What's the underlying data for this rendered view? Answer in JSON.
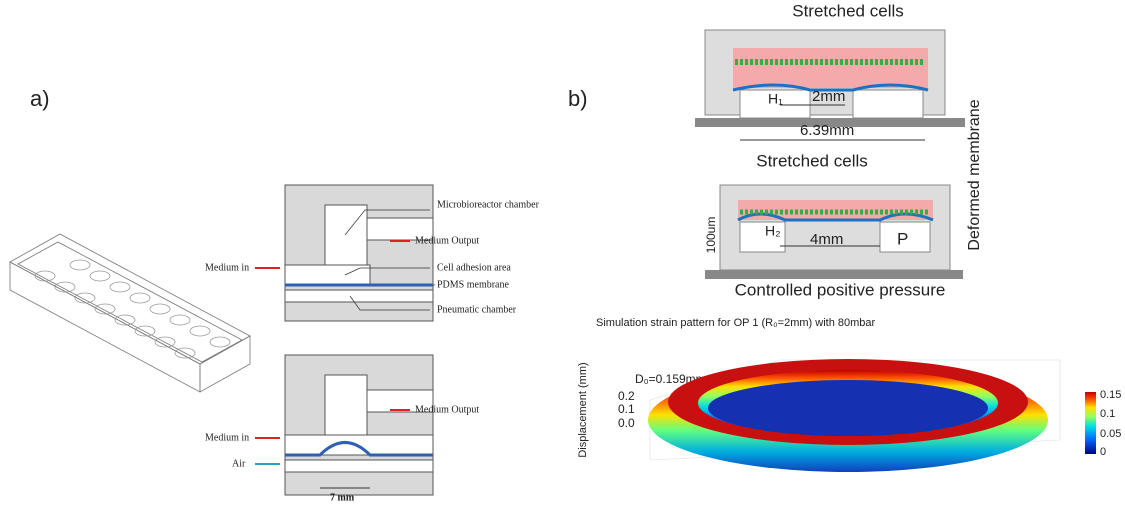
{
  "panel_a": {
    "label": "a)",
    "top_diagram": {
      "labels": [
        "Microbioreactor chamber",
        "Medium Output",
        "Medium in",
        "Cell adhesion area",
        "PDMS membrane",
        "Pneumatic chamber"
      ]
    },
    "bottom_diagram": {
      "labels": [
        "Medium Output",
        "Medium in",
        "Air",
        "7 mm"
      ]
    }
  },
  "panel_b": {
    "label": "b)",
    "top_diagram": {
      "labels": [
        "Stretched cells",
        "H₁",
        "2mm",
        "6.39mm"
      ]
    },
    "side_label": "Deformed membrane",
    "bottom_diagram": {
      "labels": [
        "Stretched cells",
        "100um",
        "H₂",
        "4mm",
        "P",
        "Controlled positive pressure"
      ]
    },
    "simulation": {
      "title": "Simulation strain pattern for OP 1 (R₀=2mm) with 80mbar",
      "annotation": "D₀=0.159mm",
      "axis_label": "Displacement (mm)",
      "axis_ticks": [
        "0.2",
        "0.1",
        "0.0"
      ],
      "colorbar_ticks": [
        "0.15",
        "0.1",
        "0.05",
        "0"
      ]
    }
  }
}
